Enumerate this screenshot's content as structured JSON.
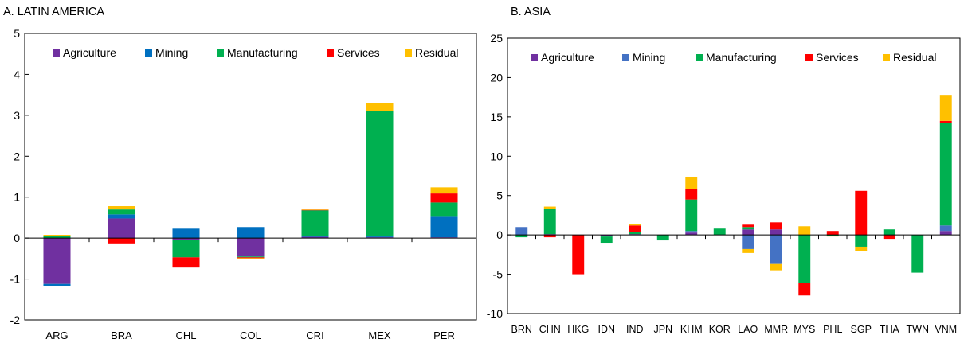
{
  "chart_data": [
    {
      "type": "bar",
      "stacked": true,
      "title": "A. LATIN AMERICA",
      "xlabel": "",
      "ylabel": "",
      "ylim": [
        -2,
        5
      ],
      "yticks": [
        -2,
        -1,
        0,
        1,
        2,
        3,
        4,
        5
      ],
      "grid": false,
      "legend_position": "top",
      "categories": [
        "ARG",
        "BRA",
        "CHL",
        "COL",
        "CRI",
        "MEX",
        "PER"
      ],
      "series": [
        {
          "name": "Agriculture",
          "color": "#7030A0",
          "values": [
            -1.12,
            0.48,
            -0.05,
            -0.45,
            0.03,
            0.02,
            0.02
          ]
        },
        {
          "name": "Mining",
          "color": "#0070C0",
          "values": [
            -0.05,
            0.1,
            0.23,
            0.27,
            0.02,
            0.02,
            0.5
          ]
        },
        {
          "name": "Manufacturing",
          "color": "#00B050",
          "values": [
            0.05,
            0.12,
            -0.42,
            -0.02,
            0.63,
            3.06,
            0.35
          ]
        },
        {
          "name": "Services",
          "color": "#FF0000",
          "values": [
            0.0,
            -0.13,
            -0.25,
            -0.02,
            0.01,
            0.0,
            0.22
          ]
        },
        {
          "name": "Residual",
          "color": "#FFC000",
          "values": [
            0.03,
            0.08,
            0.0,
            -0.03,
            0.01,
            0.2,
            0.15
          ]
        }
      ]
    },
    {
      "type": "bar",
      "stacked": true,
      "title": "B. ASIA",
      "xlabel": "",
      "ylabel": "",
      "ylim": [
        -10,
        25
      ],
      "yticks": [
        -10,
        -5,
        0,
        5,
        10,
        15,
        20,
        25
      ],
      "grid": false,
      "legend_position": "top",
      "categories": [
        "BRN",
        "CHN",
        "HKG",
        "IDN",
        "IND",
        "JPN",
        "KHM",
        "KOR",
        "LAO",
        "MMR",
        "MYS",
        "PHL",
        "SGP",
        "THA",
        "TWN",
        "VNM"
      ],
      "series": [
        {
          "name": "Agriculture",
          "color": "#7030A0",
          "values": [
            0.0,
            0.1,
            0.0,
            -0.1,
            0.1,
            0.0,
            0.3,
            0.0,
            0.7,
            0.7,
            0.0,
            0.0,
            0.0,
            0.0,
            0.0,
            0.5
          ]
        },
        {
          "name": "Mining",
          "color": "#4472C4",
          "values": [
            1.0,
            0.0,
            0.0,
            -0.1,
            0.0,
            0.0,
            0.2,
            0.0,
            -1.8,
            -3.7,
            0.0,
            0.0,
            0.0,
            0.0,
            0.0,
            0.7
          ]
        },
        {
          "name": "Manufacturing",
          "color": "#00B050",
          "values": [
            -0.3,
            3.2,
            0.0,
            -0.8,
            0.3,
            -0.7,
            4.0,
            0.8,
            0.3,
            0.0,
            -6.1,
            -0.1,
            -1.5,
            0.7,
            -4.8,
            13.0
          ]
        },
        {
          "name": "Services",
          "color": "#FF0000",
          "values": [
            0.0,
            -0.3,
            -5.0,
            0.0,
            0.8,
            0.0,
            1.3,
            0.0,
            0.3,
            0.9,
            -1.6,
            0.5,
            5.6,
            -0.5,
            0.0,
            0.3
          ]
        },
        {
          "name": "Residual",
          "color": "#FFC000",
          "values": [
            0.0,
            0.3,
            0.0,
            0.0,
            0.2,
            0.0,
            1.6,
            0.0,
            -0.5,
            -0.8,
            1.1,
            -0.1,
            -0.6,
            0.0,
            0.0,
            3.2
          ]
        }
      ]
    }
  ]
}
